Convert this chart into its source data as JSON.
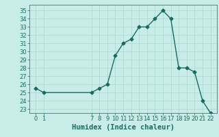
{
  "x": [
    0,
    1,
    7,
    8,
    9,
    10,
    11,
    12,
    13,
    14,
    15,
    16,
    17,
    18,
    19,
    20,
    21,
    22
  ],
  "y": [
    25.5,
    25.0,
    25.0,
    25.5,
    26.0,
    29.5,
    31.0,
    31.5,
    33.0,
    33.0,
    34.0,
    35.0,
    34.0,
    28.0,
    28.0,
    27.5,
    24.0,
    22.5
  ],
  "line_color": "#1a6b5a",
  "bg_color": "#c8ede8",
  "grid_color": "#a8d8d0",
  "xlabel": "Humidex (Indice chaleur)",
  "xticks": [
    0,
    1,
    7,
    8,
    9,
    10,
    11,
    12,
    13,
    14,
    15,
    16,
    17,
    18,
    19,
    20,
    21,
    22
  ],
  "yticks": [
    23,
    24,
    25,
    26,
    27,
    28,
    29,
    30,
    31,
    32,
    33,
    34,
    35
  ],
  "ylim": [
    22.5,
    35.7
  ],
  "xlim": [
    -0.8,
    22.8
  ],
  "marker": "D",
  "markersize": 2.5,
  "linewidth": 1.0,
  "xlabel_fontsize": 7.5,
  "tick_fontsize": 6,
  "tick_color": "#1a6b5a",
  "label_color": "#1a6b5a",
  "spine_color": "#1a6b5a"
}
